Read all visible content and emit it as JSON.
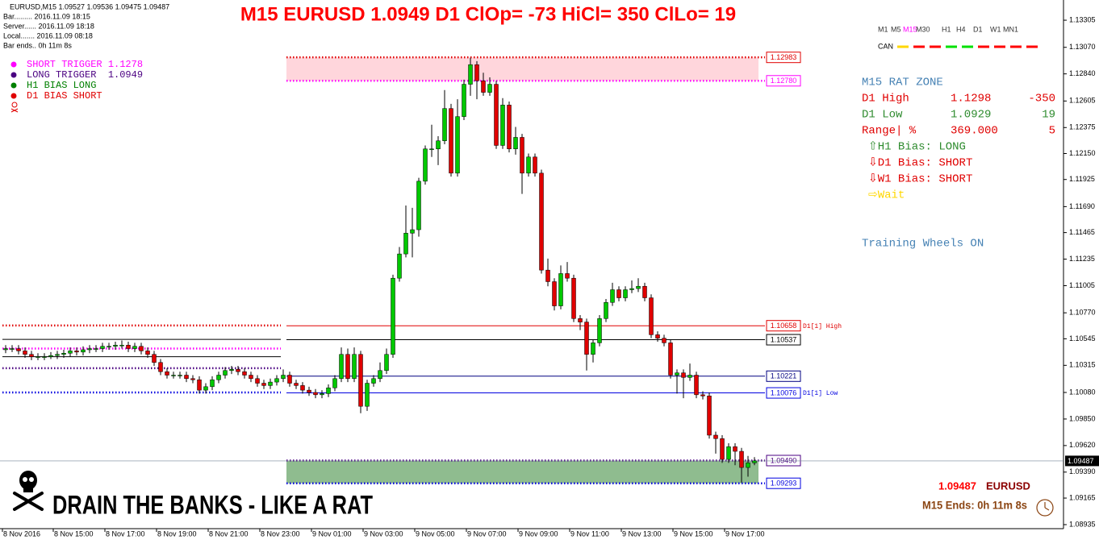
{
  "info": {
    "symbol_line": "EURUSD,M15  1.09527 1.09536 1.09475 1.09487",
    "lines": [
      "Bar......... 2016.11.09 18:15",
      "Server...... 2016.11.09 18:18",
      "Local....... 2016.11.09 08:18",
      "Bar ends.. 0h 11m 8s"
    ]
  },
  "legend": [
    {
      "text": "SHORT TRIGGER 1.1278",
      "color": "#ff00ff"
    },
    {
      "text": "LONG TRIGGER  1.0949",
      "color": "#4b0082"
    },
    {
      "text": "H1 BIAS LONG",
      "color": "#008000"
    },
    {
      "text": "D1 BIAS SHORT",
      "color": "#e00000"
    }
  ],
  "timeframes": {
    "items": [
      "M1",
      "M5",
      "M15",
      "M30",
      "H1",
      "H4",
      "D1",
      "W1",
      "MN1"
    ],
    "active": "M15",
    "color": "#333333",
    "active_color": "#ff00ff"
  },
  "candle_signal": {
    "label": "CAN",
    "colors": [
      "#ffd700",
      "#ff0000",
      "#ff0000",
      "#00e000",
      "#00e000",
      "#ff0000",
      "#ff0000",
      "#ff0000",
      "#ff0000"
    ]
  },
  "rat_zone": {
    "title": "M15 RAT ZONE",
    "title_color": "#4682b4",
    "rows": [
      {
        "cells": [
          "D1 High",
          "1.1298",
          "-350"
        ],
        "color": "#e00000"
      },
      {
        "cells": [
          "D1 Low",
          "1.0929",
          "19"
        ],
        "color": "#2e8b2e"
      },
      {
        "cells": [
          "Range| %",
          "369.000",
          "5"
        ],
        "color": "#e00000"
      }
    ],
    "notes": [
      {
        "text": "⇧H1 Bias: LONG",
        "color": "#2e8b2e"
      },
      {
        "text": "⇩D1 Bias: SHORT",
        "color": "#e00000"
      },
      {
        "text": "⇩W1 Bias: SHORT",
        "color": "#e00000"
      },
      {
        "text": "⇨Wait",
        "color": "#ffd700"
      }
    ],
    "footer": "Training Wheels ON"
  },
  "slogan": "DRAIN THE BANKS - LIKE A RAT",
  "status": {
    "price": "1.09487",
    "symbol": "EURUSD",
    "bar_end": "M15 Ends: 0h 11m 8s"
  },
  "chart_data": {
    "type": "candlestick",
    "title": "M15 EURUSD 1.0949 D1 ClOp= -73 HiCl= 350 ClLo= 19",
    "up_color": "#00c800",
    "down_color": "#e00000",
    "ylim": [
      1.089,
      1.1348
    ],
    "yticks": [
      1.13305,
      {
        "value": 1.1307,
        "label": "1.13070"
      },
      {
        "value": 1.1284,
        "label": "1.12840"
      },
      1.12605,
      1.12375,
      {
        "value": 1.1215,
        "label": "1.12150"
      },
      1.11925,
      {
        "value": 1.1169,
        "label": "1.11690"
      },
      1.11465,
      1.11235,
      1.11005,
      {
        "value": 1.1077,
        "label": "1.10770"
      },
      1.10545,
      1.10315,
      {
        "value": 1.1008,
        "label": "1.10080"
      },
      {
        "value": 1.0985,
        "label": "1.09850"
      },
      {
        "value": 1.0962,
        "label": "1.09620"
      },
      {
        "value": 1.0939,
        "label": "1.09390"
      },
      1.09165,
      1.08935
    ],
    "xticks": [
      "8 Nov 2016",
      "8 Nov 15:00",
      "8 Nov 17:00",
      "8 Nov 19:00",
      "8 Nov 21:00",
      "8 Nov 23:00",
      "9 Nov 01:00",
      "9 Nov 03:00",
      "9 Nov 05:00",
      "9 Nov 07:00",
      "9 Nov 09:00",
      "9 Nov 11:00",
      "9 Nov 13:00",
      "9 Nov 15:00",
      "9 Nov 17:00"
    ],
    "current_price": 1.09487,
    "open": [
      1.1045,
      1.1046,
      1.1046,
      1.1044,
      1.1041,
      1.1039,
      1.1039,
      1.1039,
      1.104,
      1.1041,
      1.1042,
      1.1044,
      1.1043,
      1.1045,
      1.1046,
      1.1046,
      1.1048,
      1.1048,
      1.1049,
      1.1049,
      1.1046,
      1.1048,
      1.1044,
      1.1041,
      1.1034,
      1.1026,
      1.1023,
      1.1023,
      1.1023,
      1.102,
      1.1019,
      1.101,
      1.1013,
      1.1019,
      1.1023,
      1.1027,
      1.1028,
      1.1026,
      1.1023,
      1.102,
      1.1016,
      1.1014,
      1.1017,
      1.102,
      1.1023,
      1.1016,
      1.1014,
      1.101,
      1.1008,
      1.1006,
      1.1007,
      1.1012,
      1.102,
      1.1041,
      1.102,
      1.1041,
      1.0996,
      1.1016,
      1.102,
      1.1027,
      1.1041,
      1.1107,
      1.1128,
      1.1146,
      1.1149,
      1.1191,
      1.1219,
      1.1219,
      1.1226,
      1.1254,
      1.1198,
      1.1247,
      1.1275,
      1.1292,
      1.1278,
      1.1268,
      1.1275,
      1.1222,
      1.1257,
      1.1219,
      1.1229,
      1.1198,
      1.1212,
      1.1198,
      1.1114,
      1.1104,
      1.1083,
      1.1111,
      1.1107,
      1.1072,
      1.1069,
      1.1041,
      1.1051,
      1.1072,
      1.1086,
      1.1097,
      1.109,
      1.1097,
      1.1098,
      1.11,
      1.109,
      1.1058,
      1.1055,
      1.1051,
      1.1023,
      1.1025,
      1.1021,
      1.1023,
      1.1006,
      1.1005,
      1.0971,
      1.0968,
      1.095,
      1.0961,
      1.0957,
      1.0943,
      1.0947
    ],
    "high": [
      1.1049,
      1.1049,
      1.1049,
      1.1047,
      1.1044,
      1.1042,
      1.1042,
      1.1043,
      1.1044,
      1.1045,
      1.1047,
      1.1047,
      1.1048,
      1.1049,
      1.1049,
      1.1051,
      1.1051,
      1.1052,
      1.1053,
      1.1052,
      1.1051,
      1.1051,
      1.1047,
      1.1044,
      1.1037,
      1.1029,
      1.1026,
      1.1026,
      1.1026,
      1.1023,
      1.1022,
      1.1016,
      1.1022,
      1.1026,
      1.103,
      1.1031,
      1.1031,
      1.1029,
      1.1026,
      1.1023,
      1.1019,
      1.102,
      1.1023,
      1.1028,
      1.1026,
      1.1019,
      1.1017,
      1.1013,
      1.1011,
      1.101,
      1.1015,
      1.1023,
      1.1047,
      1.1046,
      1.1047,
      1.1044,
      1.1019,
      1.1023,
      1.1034,
      1.1046,
      1.111,
      1.1134,
      1.117,
      1.1168,
      1.1194,
      1.1222,
      1.124,
      1.123,
      1.127,
      1.1258,
      1.1262,
      1.1279,
      1.1298,
      1.1295,
      1.1285,
      1.1281,
      1.1278,
      1.1263,
      1.126,
      1.1238,
      1.1232,
      1.1215,
      1.1215,
      1.1201,
      1.1124,
      1.1107,
      1.1118,
      1.1121,
      1.111,
      1.1075,
      1.1072,
      1.1054,
      1.1075,
      1.1089,
      1.1103,
      1.11,
      1.11,
      1.1105,
      1.1107,
      1.1103,
      1.1093,
      1.1061,
      1.1058,
      1.1054,
      1.1028,
      1.1028,
      1.1033,
      1.1026,
      1.1009,
      1.1008,
      1.0974,
      1.0971,
      1.0964,
      1.0964,
      1.096,
      1.0953,
      1.0952
    ],
    "low": [
      1.1042,
      1.1043,
      1.1041,
      1.1038,
      1.1036,
      1.1036,
      1.1036,
      1.1037,
      1.1037,
      1.1038,
      1.1039,
      1.104,
      1.104,
      1.1042,
      1.1043,
      1.1043,
      1.1045,
      1.1045,
      1.1046,
      1.1043,
      1.1043,
      1.1041,
      1.1038,
      1.1031,
      1.1023,
      1.102,
      1.102,
      1.102,
      1.1017,
      1.1016,
      1.1007,
      1.1007,
      1.101,
      1.1016,
      1.102,
      1.1024,
      1.1023,
      1.102,
      1.1017,
      1.1013,
      1.1011,
      1.1011,
      1.1014,
      1.1017,
      1.1013,
      1.1011,
      1.1007,
      1.1005,
      1.1003,
      1.1003,
      1.1004,
      1.1009,
      1.1017,
      1.1017,
      1.1017,
      1.099,
      1.0992,
      1.1013,
      1.1017,
      1.1024,
      1.1038,
      1.1104,
      1.1125,
      1.1125,
      1.1143,
      1.1188,
      1.1212,
      1.1205,
      1.1223,
      1.1195,
      1.1195,
      1.1244,
      1.1265,
      1.1262,
      1.1265,
      1.1265,
      1.1219,
      1.1219,
      1.1216,
      1.1214,
      1.118,
      1.1195,
      1.1195,
      1.1111,
      1.11,
      1.1079,
      1.108,
      1.1104,
      1.1069,
      1.1062,
      1.1027,
      1.1034,
      1.1048,
      1.1069,
      1.1083,
      1.1087,
      1.1087,
      1.1094,
      1.1095,
      1.1087,
      1.1055,
      1.1052,
      1.1048,
      1.102,
      1.1007,
      1.1003,
      1.1018,
      1.1003,
      1.1002,
      1.0968,
      1.0955,
      1.0947,
      1.0947,
      1.0945,
      1.093,
      1.0935,
      1.0945
    ],
    "close": [
      1.1046,
      1.1046,
      1.1044,
      1.1041,
      1.1039,
      1.1039,
      1.1039,
      1.104,
      1.1041,
      1.1042,
      1.1044,
      1.1043,
      1.1045,
      1.1046,
      1.1046,
      1.1048,
      1.1048,
      1.1049,
      1.1049,
      1.1046,
      1.1048,
      1.1044,
      1.1041,
      1.1034,
      1.1026,
      1.1023,
      1.1023,
      1.1023,
      1.102,
      1.1019,
      1.101,
      1.1013,
      1.1019,
      1.1023,
      1.1027,
      1.1028,
      1.1026,
      1.1023,
      1.102,
      1.1016,
      1.1014,
      1.1017,
      1.102,
      1.1023,
      1.1016,
      1.1014,
      1.101,
      1.1008,
      1.1006,
      1.1007,
      1.1012,
      1.102,
      1.1041,
      1.102,
      1.1041,
      1.0996,
      1.1016,
      1.102,
      1.1027,
      1.1041,
      1.1107,
      1.1128,
      1.1146,
      1.1149,
      1.1191,
      1.1219,
      1.1219,
      1.1226,
      1.1254,
      1.1198,
      1.1247,
      1.1275,
      1.1292,
      1.1278,
      1.1268,
      1.1275,
      1.1222,
      1.1257,
      1.1219,
      1.1229,
      1.1198,
      1.1212,
      1.1198,
      1.1114,
      1.1104,
      1.1083,
      1.1111,
      1.1107,
      1.1072,
      1.1069,
      1.1041,
      1.1051,
      1.1072,
      1.1086,
      1.1097,
      1.109,
      1.1097,
      1.1098,
      1.11,
      1.109,
      1.1058,
      1.1055,
      1.1051,
      1.1023,
      1.1025,
      1.1021,
      1.1023,
      1.1006,
      1.1005,
      1.0971,
      1.0968,
      1.095,
      1.0961,
      1.0957,
      1.0943,
      1.0947,
      1.09487
    ],
    "levels": [
      {
        "value": 1.12983,
        "color": "#e00000",
        "dotted": true,
        "span": "right",
        "fill": "#ffd6dc"
      },
      {
        "value": 1.1278,
        "label": "1.12780",
        "color": "#ff00ff",
        "dotted": true,
        "span": "right"
      },
      {
        "value": 1.10658,
        "color": "#e00000",
        "dotted": false,
        "span": "right",
        "note": "D1[1] High"
      },
      {
        "value": 1.10537,
        "color": "#000000",
        "dotted": false,
        "span": "right"
      },
      {
        "value": 1.10221,
        "color": "#000080",
        "dotted": false,
        "span": "right"
      },
      {
        "value": 1.10076,
        "color": "#0000e0",
        "dotted": false,
        "span": "right",
        "note": "D1[1] Low"
      },
      {
        "value": 1.0949,
        "label": "1.09490",
        "color": "#4b0082",
        "dotted": true,
        "span": "right",
        "fill": "#8fbc8f"
      },
      {
        "value": 1.09293,
        "color": "#0000e0",
        "dotted": true,
        "span": "right"
      },
      {
        "value": 1.1066,
        "color": "#e00000",
        "dotted": true,
        "span": "left"
      },
      {
        "value": 1.1054,
        "color": "#000000",
        "dotted": false,
        "span": "left"
      },
      {
        "value": 1.1046,
        "color": "#ff00ff",
        "dotted": true,
        "span": "left"
      },
      {
        "value": 1.1039,
        "color": "#000000",
        "dotted": false,
        "span": "left"
      },
      {
        "value": 1.1029,
        "color": "#4b0082",
        "dotted": true,
        "span": "left"
      },
      {
        "value": 1.1008,
        "color": "#0000e0",
        "dotted": true,
        "span": "left"
      }
    ]
  }
}
